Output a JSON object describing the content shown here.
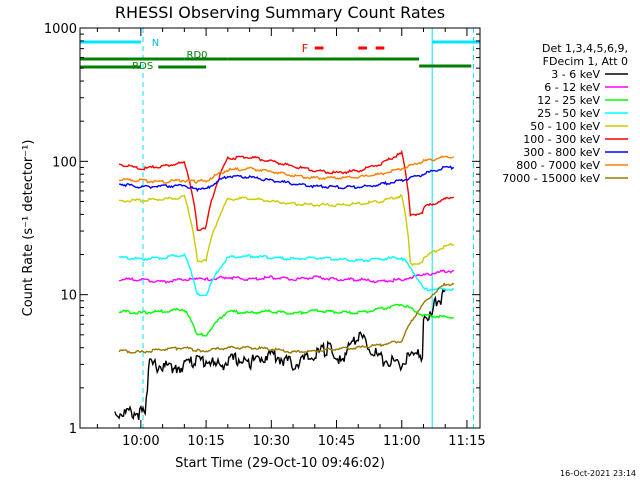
{
  "chart_data": {
    "type": "line",
    "title": "RHESSI Observing Summary Count Rates",
    "xlabel": "Start Time (29-Oct-10 09:46:02)",
    "ylabel": "Count Rate (s⁻¹ detector⁻¹)",
    "yscale": "log",
    "ylim": [
      1,
      1000
    ],
    "xlim_minutes": [
      -14,
      78
    ],
    "x_ticks": [
      "10:00",
      "10:15",
      "10:30",
      "10:45",
      "11:00",
      "11:15"
    ],
    "y_ticks": [
      "1",
      "10",
      "100",
      "1000"
    ],
    "legend_header": [
      "Det 1,3,4,5,6,9,",
      "FDecim 1, Att 0"
    ],
    "legend_position": "right",
    "grid": false,
    "x_unit": "minutes after 10:00",
    "series": [
      {
        "name": "3 - 6 keV",
        "color": "#000000",
        "x": [
          -6,
          1,
          2,
          8,
          12,
          17,
          22,
          25,
          30,
          35,
          40,
          43,
          46,
          50,
          55,
          60,
          62,
          65,
          68,
          70
        ],
        "values": [
          1.3,
          1.3,
          3.0,
          2.8,
          3.2,
          2.9,
          3.3,
          3.1,
          3.6,
          3.0,
          3.5,
          4.0,
          3.2,
          5.0,
          3.3,
          3.0,
          3.5,
          6.0,
          9.0,
          10.0
        ],
        "breaks_after_x": [
          12,
          62
        ]
      },
      {
        "name": "6 - 12 keV",
        "color": "#ff00ff",
        "x": [
          -5,
          0,
          5,
          10,
          13,
          15,
          20,
          25,
          30,
          35,
          40,
          45,
          50,
          55,
          60,
          62,
          65,
          70,
          72
        ],
        "values": [
          13,
          13,
          12.5,
          13,
          13,
          13,
          13.5,
          13,
          13.5,
          13,
          13.5,
          13,
          13,
          12.5,
          13,
          13.5,
          14,
          15,
          15
        ],
        "breaks_after_x": [
          13,
          22
        ]
      },
      {
        "name": "12 - 25 keV",
        "color": "#00ff00",
        "x": [
          -5,
          0,
          5,
          10,
          13,
          15,
          20,
          25,
          30,
          35,
          40,
          45,
          50,
          55,
          60,
          65,
          70,
          72
        ],
        "values": [
          7.5,
          7.3,
          7.5,
          7.8,
          5.0,
          5.0,
          7.5,
          7.3,
          7.5,
          7.2,
          7.6,
          7.4,
          7.3,
          7.8,
          8.5,
          7.0,
          6.8,
          6.8
        ],
        "breaks_after_x": [
          22
        ]
      },
      {
        "name": "25 - 50 keV",
        "color": "#00ffff",
        "x": [
          -5,
          0,
          5,
          10,
          13,
          15,
          20,
          25,
          30,
          35,
          40,
          45,
          50,
          55,
          60,
          65,
          70,
          72
        ],
        "values": [
          19,
          18.5,
          19,
          20,
          10,
          10,
          19,
          19.5,
          19,
          18.5,
          19,
          18.5,
          18,
          18.5,
          19,
          11,
          11,
          11
        ],
        "breaks_after_x": [
          22,
          62
        ]
      },
      {
        "name": "50 - 100 keV",
        "color": "#cccc00",
        "x": [
          -5,
          0,
          5,
          10,
          13,
          15,
          20,
          25,
          30,
          35,
          40,
          45,
          50,
          55,
          60,
          62,
          65,
          70,
          72
        ],
        "values": [
          50,
          51,
          52,
          54,
          18,
          18,
          52,
          53,
          50,
          48,
          47,
          47,
          48,
          50,
          55,
          17,
          19,
          23,
          24
        ],
        "breaks_after_x": [
          13,
          22,
          62
        ]
      },
      {
        "name": "100 - 300 keV",
        "color": "#ff0000",
        "x": [
          -5,
          0,
          5,
          10,
          13,
          15,
          20,
          25,
          30,
          35,
          40,
          45,
          50,
          55,
          60,
          62,
          65,
          70,
          72
        ],
        "values": [
          95,
          88,
          92,
          98,
          31,
          32,
          105,
          108,
          100,
          92,
          85,
          82,
          85,
          95,
          115,
          40,
          45,
          52,
          55
        ],
        "breaks_after_x": [
          13,
          22,
          62
        ]
      },
      {
        "name": "300 - 800 keV",
        "color": "#0000ff",
        "x": [
          -5,
          0,
          5,
          10,
          13,
          15,
          20,
          25,
          30,
          35,
          40,
          45,
          50,
          55,
          60,
          65,
          70,
          72
        ],
        "values": [
          68,
          64,
          65,
          66,
          61,
          62,
          78,
          76,
          72,
          68,
          65,
          64,
          64,
          67,
          72,
          80,
          90,
          90
        ],
        "breaks_after_x": [
          22
        ]
      },
      {
        "name": "800 - 7000 keV",
        "color": "#ff8000",
        "x": [
          -5,
          0,
          5,
          10,
          13,
          15,
          20,
          25,
          30,
          35,
          40,
          45,
          50,
          55,
          60,
          65,
          70,
          72
        ],
        "values": [
          73,
          72,
          70,
          72,
          70,
          72,
          86,
          88,
          84,
          78,
          75,
          75,
          76,
          80,
          88,
          100,
          108,
          108
        ],
        "breaks_after_x": []
      },
      {
        "name": "7000 - 15000 keV",
        "color": "#9b7a00",
        "x": [
          -5,
          0,
          5,
          10,
          13,
          15,
          20,
          25,
          30,
          35,
          40,
          45,
          50,
          55,
          60,
          65,
          70,
          72
        ],
        "values": [
          3.8,
          3.7,
          3.9,
          4.0,
          3.8,
          3.8,
          4.0,
          4.0,
          3.9,
          3.7,
          3.8,
          3.9,
          4.0,
          4.2,
          4.5,
          8.5,
          12,
          12
        ],
        "breaks_after_x": [
          22
        ]
      }
    ],
    "annotations": {
      "N_label": "N",
      "F_label": "F",
      "RDO_label": "RD0",
      "RDS_label": "RDS",
      "night_segments": [
        [
          -14,
          0
        ],
        [
          67,
          78
        ]
      ],
      "saa_vlines": [
        -14,
        0.5,
        67,
        76.5
      ],
      "flare_segments": [
        [
          40,
          42
        ],
        [
          50,
          52
        ],
        [
          54,
          56
        ]
      ],
      "rd0_segments": [
        [
          -14,
          10
        ],
        [
          10,
          20
        ],
        [
          20,
          64
        ],
        [
          64,
          76
        ]
      ],
      "rds_segments": [
        [
          -14,
          0
        ],
        [
          4,
          15
        ]
      ]
    },
    "timestamp": "16-Oct-2021 23:14"
  }
}
